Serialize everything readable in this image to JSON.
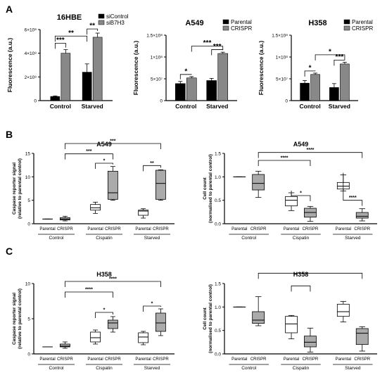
{
  "panels": [
    {
      "label": "A"
    },
    {
      "label": "B"
    },
    {
      "label": "C"
    }
  ],
  "chart_data": [
    {
      "type": "bar",
      "title": "16HBE",
      "ylabel": "Fluorescence (a.u.)",
      "categories": [
        "Control",
        "Starved"
      ],
      "series": [
        {
          "name": "siControl",
          "color": "#000000",
          "values": [
            35000000.0,
            240000000.0
          ],
          "errors": [
            5000000.0,
            70000000.0
          ]
        },
        {
          "name": "siB7H3",
          "color": "#888888",
          "values": [
            400000000.0,
            535000000.0
          ],
          "errors": [
            30000000.0,
            35000000.0
          ]
        }
      ],
      "ylim": [
        0,
        600000000.0
      ],
      "yticks": [
        {
          "v": 0,
          "label": "0"
        },
        {
          "v": 200000000.0,
          "label": "2×10⁸"
        },
        {
          "v": 400000000.0,
          "label": "4×10⁸"
        },
        {
          "v": 600000000.0,
          "label": "6×10⁸"
        }
      ],
      "legend": "top-right",
      "significance": [
        {
          "text": "***",
          "from": [
            0,
            0
          ],
          "to": [
            0,
            1
          ],
          "y": 485000000.0
        },
        {
          "text": "**",
          "from": [
            0,
            0
          ],
          "to": [
            1,
            0
          ],
          "y": 545000000.0
        },
        {
          "text": "**",
          "from": [
            1,
            0
          ],
          "to": [
            1,
            1
          ],
          "y": 605000000.0
        }
      ]
    },
    {
      "type": "bar",
      "title": "A549",
      "ylabel": "Fluorescence (a.u.)",
      "categories": [
        "Control",
        "Starved"
      ],
      "series": [
        {
          "name": "Parental",
          "color": "#000000",
          "values": [
            39000000.0,
            46000000.0
          ],
          "errors": [
            5000000.0,
            5000000.0
          ]
        },
        {
          "name": "CRISPR",
          "color": "#888888",
          "values": [
            52000000.0,
            108000000.0
          ],
          "errors": [
            3000000.0,
            3000000.0
          ]
        }
      ],
      "ylim": [
        0,
        150000000.0
      ],
      "yticks": [
        {
          "v": 0,
          "label": "0"
        },
        {
          "v": 50000000.0,
          "label": "5×10⁷"
        },
        {
          "v": 100000000.0,
          "label": "1×10⁸"
        },
        {
          "v": 150000000.0,
          "label": "1.5×10⁸"
        }
      ],
      "legend": "top-right",
      "significance": [
        {
          "text": "*",
          "from": [
            0,
            0
          ],
          "to": [
            0,
            1
          ],
          "y": 60000000.0
        },
        {
          "text": "***",
          "from": [
            0,
            1
          ],
          "to": [
            1,
            1
          ],
          "y": 125000000.0
        },
        {
          "text": "***",
          "from": [
            1,
            0
          ],
          "to": [
            1,
            1
          ],
          "y": 117000000.0
        }
      ]
    },
    {
      "type": "bar",
      "title": "H358",
      "ylabel": "Fluorescence (a.u.)",
      "categories": [
        "Control",
        "Starved"
      ],
      "series": [
        {
          "name": "Parental",
          "color": "#000000",
          "values": [
            40000000.0,
            30000000.0
          ],
          "errors": [
            6000000.0,
            9000000.0
          ]
        },
        {
          "name": "CRISPR",
          "color": "#888888",
          "values": [
            60000000.0,
            84000000.0
          ],
          "errors": [
            3000000.0,
            4000000.0
          ]
        }
      ],
      "ylim": [
        0,
        150000000.0
      ],
      "yticks": [
        {
          "v": 0,
          "label": "0"
        },
        {
          "v": 50000000.0,
          "label": "5×10⁷"
        },
        {
          "v": 100000000.0,
          "label": "1×10⁸"
        },
        {
          "v": 150000000.0,
          "label": "1.5×10⁸"
        }
      ],
      "legend": "top-right",
      "significance": [
        {
          "text": "*",
          "from": [
            0,
            0
          ],
          "to": [
            0,
            1
          ],
          "y": 68000000.0
        },
        {
          "text": "*",
          "from": [
            0,
            1
          ],
          "to": [
            1,
            1
          ],
          "y": 105000000.0
        },
        {
          "text": "***",
          "from": [
            1,
            0
          ],
          "to": [
            1,
            1
          ],
          "y": 93000000.0
        }
      ]
    },
    {
      "type": "box",
      "title": "A549",
      "ylabel": "Caspase reporter signal\n(relative to parental control)",
      "ylim": [
        0,
        15
      ],
      "yticks": [
        {
          "v": 0,
          "label": "0"
        },
        {
          "v": 5,
          "label": "5"
        },
        {
          "v": 10,
          "label": "10"
        },
        {
          "v": 15,
          "label": "15"
        }
      ],
      "groups": [
        "Control",
        "Cispatin",
        "Starved"
      ],
      "box_labels": [
        "Parental",
        "CRISPR"
      ],
      "boxes": [
        {
          "group": 0,
          "member": 0,
          "color": "#ffffff",
          "min": 1.0,
          "q1": 1.0,
          "median": 1.0,
          "q3": 1.0,
          "max": 1.0
        },
        {
          "group": 0,
          "member": 1,
          "color": "#aaaaaa",
          "min": 0.6,
          "q1": 0.8,
          "median": 1.0,
          "q3": 1.3,
          "max": 1.6
        },
        {
          "group": 1,
          "member": 0,
          "color": "#ffffff",
          "min": 2.2,
          "q1": 2.9,
          "median": 3.4,
          "q3": 4.1,
          "max": 4.6
        },
        {
          "group": 1,
          "member": 1,
          "color": "#aaaaaa",
          "min": 5.0,
          "q1": 5.2,
          "median": 6.6,
          "q3": 11.2,
          "max": 12.2
        },
        {
          "group": 2,
          "member": 0,
          "color": "#ffffff",
          "min": 1.2,
          "q1": 1.8,
          "median": 2.7,
          "q3": 2.9,
          "max": 3.2
        },
        {
          "group": 2,
          "member": 1,
          "color": "#aaaaaa",
          "min": 5.0,
          "q1": 5.2,
          "median": 8.6,
          "q3": 11.4,
          "max": 11.5
        }
      ],
      "significance": [
        {
          "text": "*",
          "from": [
            1,
            0
          ],
          "to": [
            1,
            1
          ],
          "y": 12.9
        },
        {
          "text": "**",
          "from": [
            2,
            0
          ],
          "to": [
            2,
            1
          ],
          "y": 12.4
        },
        {
          "text": "***",
          "from": [
            0,
            1
          ],
          "to": [
            1,
            1
          ],
          "y": 14.9
        },
        {
          "text": "***",
          "from": [
            0,
            1
          ],
          "to": [
            2,
            1
          ],
          "y": 17.1
        }
      ]
    },
    {
      "type": "box",
      "title": "A549",
      "ylabel": "Cell count\n(normalised to parental control)",
      "ylim": [
        0,
        1.5
      ],
      "yticks": [
        {
          "v": 0,
          "label": "0.0"
        },
        {
          "v": 0.5,
          "label": "0.5"
        },
        {
          "v": 1.0,
          "label": "1.0"
        },
        {
          "v": 1.5,
          "label": "1.5"
        }
      ],
      "groups": [
        "Control",
        "Cispatin",
        "Starved"
      ],
      "box_labels": [
        "Parental",
        "CRISPR"
      ],
      "boxes": [
        {
          "group": 0,
          "member": 0,
          "color": "#ffffff",
          "min": 1.0,
          "q1": 1.0,
          "median": 1.0,
          "q3": 1.0,
          "max": 1.0
        },
        {
          "group": 0,
          "member": 1,
          "color": "#aaaaaa",
          "min": 0.56,
          "q1": 0.72,
          "median": 0.86,
          "q3": 1.05,
          "max": 1.12
        },
        {
          "group": 1,
          "member": 0,
          "color": "#ffffff",
          "min": 0.28,
          "q1": 0.38,
          "median": 0.5,
          "q3": 0.58,
          "max": 0.66
        },
        {
          "group": 1,
          "member": 1,
          "color": "#aaaaaa",
          "min": 0.05,
          "q1": 0.14,
          "median": 0.24,
          "q3": 0.33,
          "max": 0.37
        },
        {
          "group": 2,
          "member": 0,
          "color": "#ffffff",
          "min": 0.7,
          "q1": 0.74,
          "median": 0.8,
          "q3": 0.88,
          "max": 1.04
        },
        {
          "group": 2,
          "member": 1,
          "color": "#aaaaaa",
          "min": 0.06,
          "q1": 0.12,
          "median": 0.16,
          "q3": 0.24,
          "max": 0.32
        }
      ],
      "significance": [
        {
          "text": "*",
          "from": [
            1,
            0
          ],
          "to": [
            1,
            1
          ],
          "y": 0.6
        },
        {
          "text": "****",
          "from": [
            2,
            0
          ],
          "to": [
            2,
            1
          ],
          "y": 0.5
        },
        {
          "text": "****",
          "from": [
            0,
            1
          ],
          "to": [
            1,
            1
          ],
          "y": 1.35
        },
        {
          "text": "****",
          "from": [
            0,
            1
          ],
          "to": [
            2,
            1
          ],
          "y": 1.52
        }
      ]
    },
    {
      "type": "box",
      "title": "H358",
      "ylabel": "Caspase reporter signal\n(relative to parental control)",
      "ylim": [
        0,
        10
      ],
      "yticks": [
        {
          "v": 0,
          "label": "0"
        },
        {
          "v": 5,
          "label": "5"
        },
        {
          "v": 10,
          "label": "10"
        }
      ],
      "groups": [
        "Control",
        "Cispatin",
        "Starved"
      ],
      "box_labels": [
        "Parental",
        "CRISPR"
      ],
      "boxes": [
        {
          "group": 0,
          "member": 0,
          "color": "#ffffff",
          "min": 1.0,
          "q1": 1.0,
          "median": 1.0,
          "q3": 1.0,
          "max": 1.0
        },
        {
          "group": 0,
          "member": 1,
          "color": "#aaaaaa",
          "min": 0.8,
          "q1": 1.0,
          "median": 1.1,
          "q3": 1.4,
          "max": 1.7
        },
        {
          "group": 1,
          "member": 0,
          "color": "#ffffff",
          "min": 1.4,
          "q1": 1.7,
          "median": 2.3,
          "q3": 3.1,
          "max": 3.4
        },
        {
          "group": 1,
          "member": 1,
          "color": "#aaaaaa",
          "min": 3.1,
          "q1": 3.6,
          "median": 4.4,
          "q3": 4.8,
          "max": 5.3
        },
        {
          "group": 2,
          "member": 0,
          "color": "#ffffff",
          "min": 1.3,
          "q1": 1.6,
          "median": 2.4,
          "q3": 3.0,
          "max": 3.2
        },
        {
          "group": 2,
          "member": 1,
          "color": "#aaaaaa",
          "min": 2.6,
          "q1": 3.2,
          "median": 4.4,
          "q3": 5.8,
          "max": 6.4
        }
      ],
      "significance": [
        {
          "text": "*",
          "from": [
            1,
            0
          ],
          "to": [
            1,
            1
          ],
          "y": 5.9
        },
        {
          "text": "*",
          "from": [
            2,
            0
          ],
          "to": [
            2,
            1
          ],
          "y": 6.8
        },
        {
          "text": "****",
          "from": [
            0,
            1
          ],
          "to": [
            1,
            1
          ],
          "y": 8.8
        },
        {
          "text": "****",
          "from": [
            0,
            1
          ],
          "to": [
            2,
            1
          ],
          "y": 10.3
        }
      ]
    },
    {
      "type": "box",
      "title": "H358",
      "ylabel": "Cell count\n(normalised to parental control)",
      "ylim": [
        0,
        1.5
      ],
      "yticks": [
        {
          "v": 0,
          "label": "0.0"
        },
        {
          "v": 0.5,
          "label": "0.5"
        },
        {
          "v": 1.0,
          "label": "1.0"
        },
        {
          "v": 1.5,
          "label": "1.5"
        }
      ],
      "groups": [
        "Control",
        "Cispatin",
        "Starved"
      ],
      "box_labels": [
        "Parental",
        "CRISPR"
      ],
      "boxes": [
        {
          "group": 0,
          "member": 0,
          "color": "#ffffff",
          "min": 1.0,
          "q1": 1.0,
          "median": 1.0,
          "q3": 1.0,
          "max": 1.0
        },
        {
          "group": 0,
          "member": 1,
          "color": "#aaaaaa",
          "min": 0.6,
          "q1": 0.65,
          "median": 0.72,
          "q3": 0.9,
          "max": 1.22
        },
        {
          "group": 1,
          "member": 0,
          "color": "#ffffff",
          "min": 0.32,
          "q1": 0.45,
          "median": 0.64,
          "q3": 0.8,
          "max": 0.82
        },
        {
          "group": 1,
          "member": 1,
          "color": "#aaaaaa",
          "min": 0.04,
          "q1": 0.15,
          "median": 0.25,
          "q3": 0.38,
          "max": 0.55
        },
        {
          "group": 2,
          "member": 0,
          "color": "#ffffff",
          "min": 0.68,
          "q1": 0.8,
          "median": 0.9,
          "q3": 1.06,
          "max": 1.12
        },
        {
          "group": 2,
          "member": 1,
          "color": "#aaaaaa",
          "min": 0.06,
          "q1": 0.2,
          "median": 0.44,
          "q3": 0.54,
          "max": 0.58
        }
      ],
      "significance": [
        {
          "text": "",
          "from": [
            1,
            0
          ],
          "to": [
            1,
            1
          ],
          "y": 1.45
        },
        {
          "text": "",
          "from": [
            0,
            1
          ],
          "to": [
            2,
            1
          ],
          "y": 1.72
        }
      ]
    }
  ]
}
